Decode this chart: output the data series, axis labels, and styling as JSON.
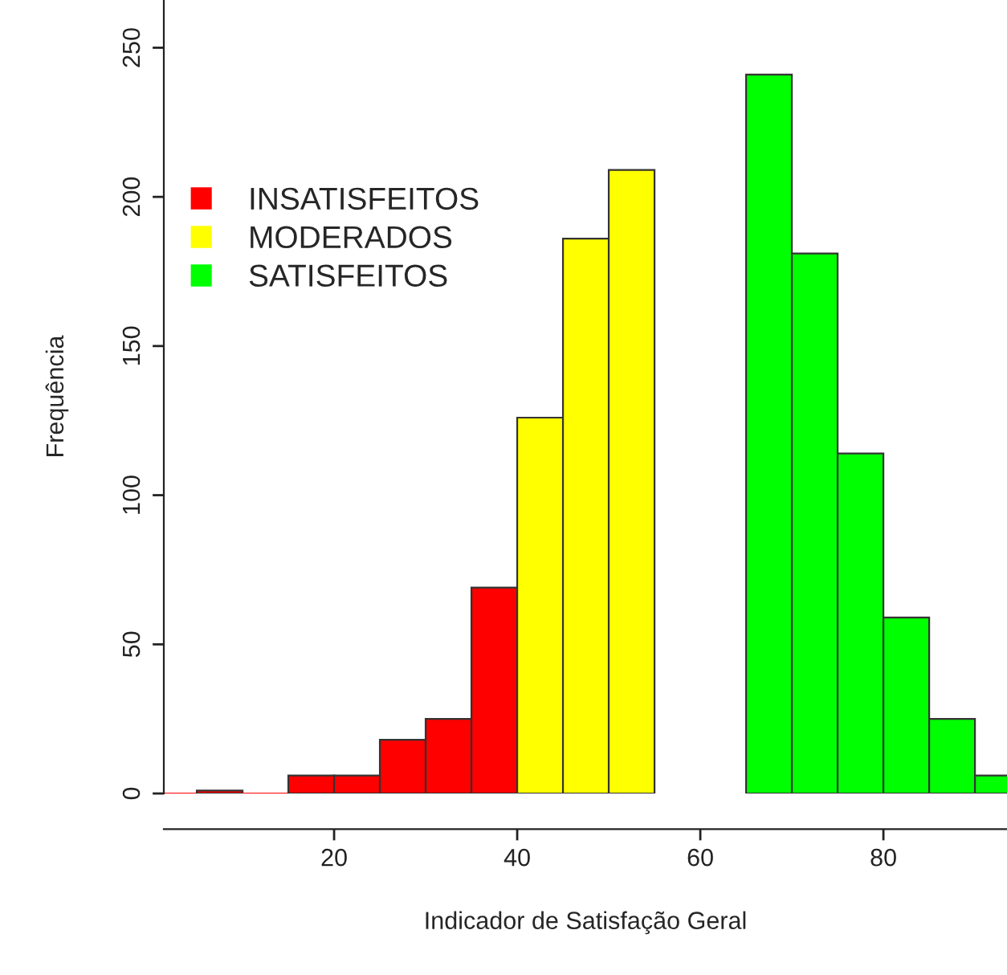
{
  "chart_data": {
    "type": "histogram",
    "xlabel": "Indicador de Satisfação Geral",
    "ylabel": "Frequência",
    "bins": [
      0,
      5,
      10,
      15,
      20,
      25,
      30,
      35,
      40,
      45,
      50,
      55,
      60,
      65,
      70,
      75,
      80,
      85,
      90,
      95
    ],
    "series": [
      {
        "name": "INSATISFEITOS",
        "color": "#ff0000",
        "values": [
          0,
          1,
          0,
          6,
          6,
          18,
          25,
          69,
          null,
          null,
          null,
          null,
          null,
          null,
          null,
          null,
          null,
          null,
          null
        ]
      },
      {
        "name": "MODERADOS",
        "color": "#ffff00",
        "values": [
          null,
          null,
          null,
          null,
          null,
          null,
          null,
          null,
          126,
          186,
          209,
          null,
          null,
          null,
          null,
          null,
          null,
          null,
          null
        ]
      },
      {
        "name": "SATISFEITOS",
        "color": "#00ff00",
        "values": [
          null,
          null,
          null,
          null,
          null,
          null,
          null,
          null,
          null,
          null,
          null,
          null,
          null,
          241,
          181,
          114,
          59,
          25,
          6
        ]
      }
    ],
    "xlim": [
      1.4,
      93.5
    ],
    "xticks": [
      20,
      40,
      60,
      80
    ],
    "ylim": [
      0,
      266
    ],
    "yticks": [
      0,
      50,
      100,
      150,
      200,
      250
    ],
    "legend": "top left",
    "grid": false
  }
}
